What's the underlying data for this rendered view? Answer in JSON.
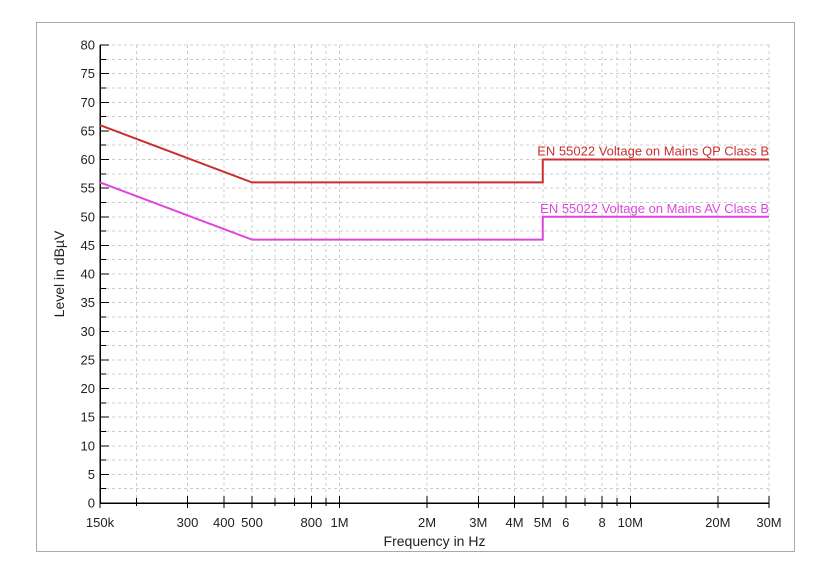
{
  "chart_data": {
    "type": "line",
    "title": "",
    "xlabel": "Frequency in Hz",
    "ylabel": "Level in dBµV",
    "x_scale": "log",
    "x_range_hz": [
      150000,
      30000000
    ],
    "ylim": [
      0,
      80
    ],
    "y_tick_step": 5,
    "y_minor_step": 2.5,
    "grid": "dashed",
    "grid_color": "#cccccc",
    "axis_color": "#000000",
    "background": "#ffffff",
    "frame_border_color": "#a9a9a9",
    "x_ticks": [
      {
        "f": 150000,
        "label": "150k"
      },
      {
        "f": 200000,
        "label": ""
      },
      {
        "f": 300000,
        "label": "300"
      },
      {
        "f": 400000,
        "label": "400"
      },
      {
        "f": 500000,
        "label": "500"
      },
      {
        "f": 600000,
        "label": ""
      },
      {
        "f": 700000,
        "label": ""
      },
      {
        "f": 800000,
        "label": "800"
      },
      {
        "f": 900000,
        "label": ""
      },
      {
        "f": 1000000,
        "label": "1M"
      },
      {
        "f": 2000000,
        "label": "2M"
      },
      {
        "f": 3000000,
        "label": "3M"
      },
      {
        "f": 4000000,
        "label": "4M"
      },
      {
        "f": 5000000,
        "label": "5M"
      },
      {
        "f": 6000000,
        "label": "6"
      },
      {
        "f": 7000000,
        "label": ""
      },
      {
        "f": 8000000,
        "label": "8"
      },
      {
        "f": 9000000,
        "label": ""
      },
      {
        "f": 10000000,
        "label": "10M"
      },
      {
        "f": 20000000,
        "label": "20M"
      },
      {
        "f": 30000000,
        "label": "30M"
      }
    ],
    "y_tick_labels": [
      "0",
      "5",
      "10",
      "15",
      "20",
      "25",
      "30",
      "35",
      "40",
      "45",
      "50",
      "55",
      "60",
      "65",
      "70",
      "75",
      "80"
    ],
    "series": [
      {
        "name": "EN 55022 Voltage on Mains QP Class B",
        "color": "#c92f2f",
        "points": [
          [
            150000,
            66
          ],
          [
            500000,
            56
          ],
          [
            5000000,
            56
          ],
          [
            5000000,
            60
          ],
          [
            30000000,
            60
          ]
        ]
      },
      {
        "name": "EN 55022 Voltage on Mains AV Class B",
        "color": "#dc46dc",
        "points": [
          [
            150000,
            56
          ],
          [
            500000,
            46
          ],
          [
            5000000,
            46
          ],
          [
            5000000,
            50
          ],
          [
            30000000,
            50
          ]
        ]
      }
    ]
  }
}
